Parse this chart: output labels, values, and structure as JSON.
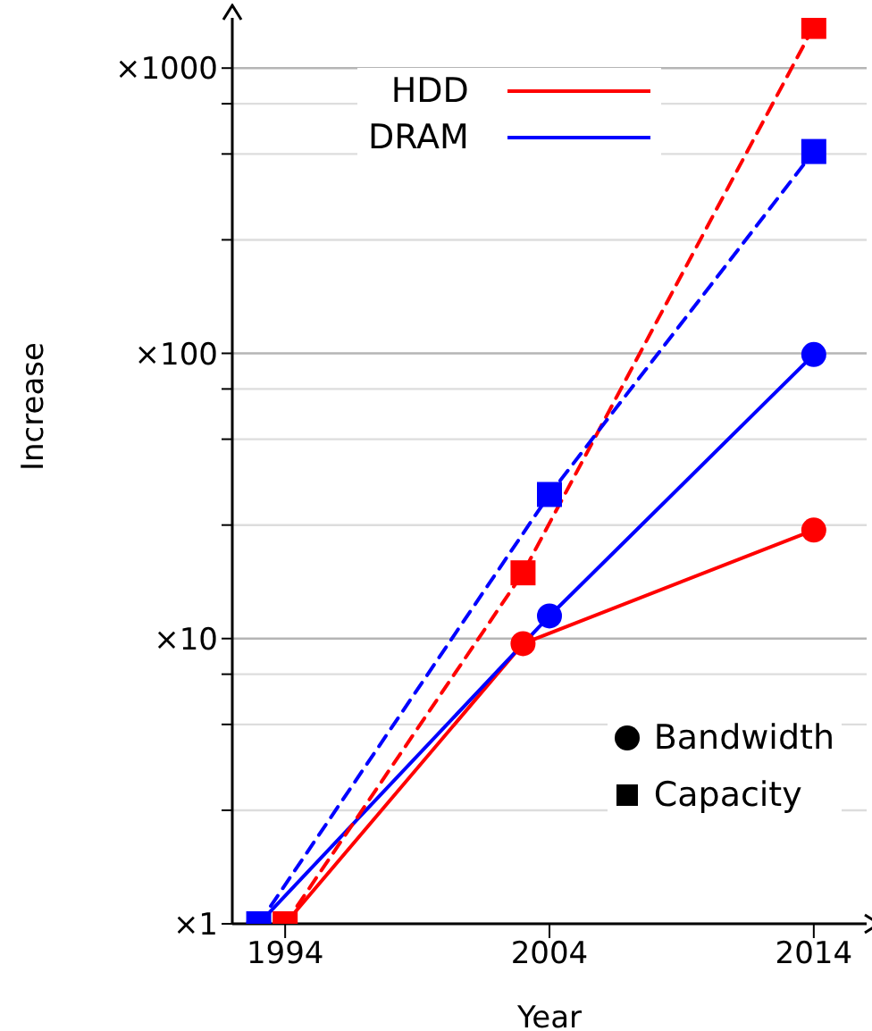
{
  "chart_data": {
    "type": "line",
    "xlabel": "Year",
    "ylabel": "Increase",
    "xlim": [
      1992,
      2016
    ],
    "xticks": [
      1994,
      2004,
      2014
    ],
    "ylim": [
      1,
      1500
    ],
    "log": "y",
    "yticks": [
      {
        "value": 1,
        "label": "×1"
      },
      {
        "value": 2.5,
        "label": null
      },
      {
        "value": 5,
        "label": null
      },
      {
        "value": 7.5,
        "label": null
      },
      {
        "value": 10,
        "label": "×10"
      },
      {
        "value": 25,
        "label": null
      },
      {
        "value": 50,
        "label": null
      },
      {
        "value": 75,
        "label": null
      },
      {
        "value": 100,
        "label": "×100"
      },
      {
        "value": 250,
        "label": null
      },
      {
        "value": 500,
        "label": null
      },
      {
        "value": 750,
        "label": null
      },
      {
        "value": 1000,
        "label": "×1000"
      }
    ],
    "grid": "y",
    "legend": "top left",
    "series": [
      {
        "name": "HDD",
        "color": "#ff0000",
        "marker": "circle",
        "line_style": "solid",
        "x": [
          1994,
          2003,
          2014
        ],
        "values": [
          1,
          9.6,
          24
        ]
      },
      {
        "name": "DRAM",
        "color": "#0000ff",
        "marker": "circle",
        "line_style": "solid",
        "x": [
          1993,
          2004,
          2014
        ],
        "values": [
          1,
          12,
          99
        ]
      },
      {
        "color": "#ff0000",
        "marker": "square",
        "line_style": "dashed",
        "x": [
          1994,
          2003,
          2014
        ],
        "values": [
          1,
          17,
          1400
        ]
      },
      {
        "color": "#0000ff",
        "marker": "square",
        "line_style": "dashed",
        "x": [
          1993,
          2004,
          2014
        ],
        "values": [
          1,
          32,
          510
        ]
      }
    ],
    "annotations": [
      "Bandwidth",
      "Capacity"
    ]
  }
}
